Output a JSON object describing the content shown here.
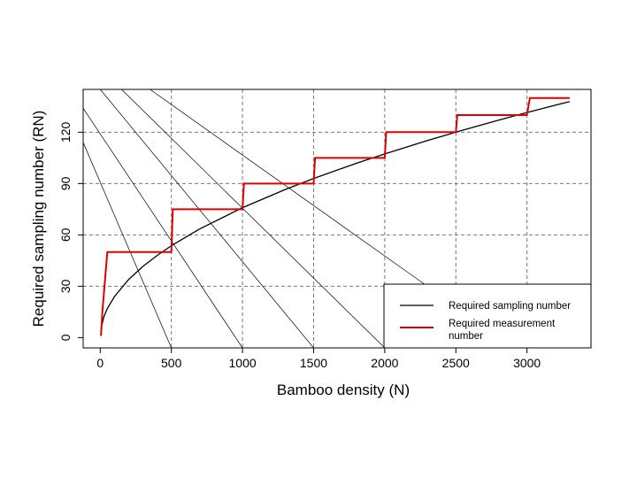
{
  "chart_data": {
    "type": "line",
    "xlabel": "Bamboo density (N)",
    "ylabel": "Required sampling number (RN)",
    "xlim": [
      -120,
      3450
    ],
    "ylim": [
      -6,
      145
    ],
    "x_ticks": [
      0,
      500,
      1000,
      1500,
      2000,
      2500,
      3000
    ],
    "x_tick_labels": [
      "0",
      "500",
      "1000",
      "1500",
      "2000",
      "2500",
      "3000"
    ],
    "y_ticks": [
      0,
      30,
      60,
      90,
      120
    ],
    "y_tick_labels": [
      "0",
      "30",
      "60",
      "90",
      "120"
    ],
    "grid": "dashed at x = 500, 1000, 1500, 2000, 2500, 3000 and y = 30, 60, 90, 120",
    "legend_position": "bottom-right",
    "colors": {
      "sampling": "#000000",
      "measurement": "#e00000",
      "guide": "#000000",
      "grid": "#777777"
    },
    "series": [
      {
        "name": "Required sampling number",
        "style": "smooth curve, RN ≈ 2.4 · N^0.5",
        "x": [
          5,
          25,
          50,
          100,
          200,
          300,
          400,
          500,
          700,
          1000,
          1300,
          1500,
          1800,
          2000,
          2300,
          2500,
          2800,
          3000,
          3300
        ],
        "y": [
          5,
          12,
          17,
          24,
          34,
          41.6,
          48,
          53.7,
          63.5,
          75.9,
          86.5,
          93,
          101.8,
          107.3,
          115.1,
          120,
          127,
          131.5,
          137.9
        ]
      },
      {
        "name": "Required measurement number",
        "style": "step function",
        "x": [
          5,
          15,
          30,
          50,
          500,
          510,
          1000,
          1010,
          1500,
          1510,
          2000,
          2010,
          2500,
          2510,
          3000,
          3020,
          3300
        ],
        "y": [
          1,
          15,
          30,
          50,
          50,
          75,
          75,
          90,
          90,
          105,
          105,
          120,
          120,
          130,
          130,
          140,
          140
        ]
      }
    ],
    "guide_lines": [
      {
        "from": [
          -120,
          114
        ],
        "to": [
          500,
          -6
        ]
      },
      {
        "from": [
          -120,
          134
        ],
        "to": [
          1000,
          -6
        ]
      },
      {
        "from": [
          0,
          145
        ],
        "to": [
          1500,
          -6
        ]
      },
      {
        "from": [
          150,
          145
        ],
        "to": [
          2000,
          -6
        ]
      },
      {
        "from": [
          350,
          145
        ],
        "to": [
          2300,
          30
        ]
      }
    ],
    "legend": [
      {
        "label": "Required sampling number",
        "series": 0
      },
      {
        "label_line1": "Required measurement",
        "label_line2": "number",
        "series": 1
      }
    ]
  }
}
